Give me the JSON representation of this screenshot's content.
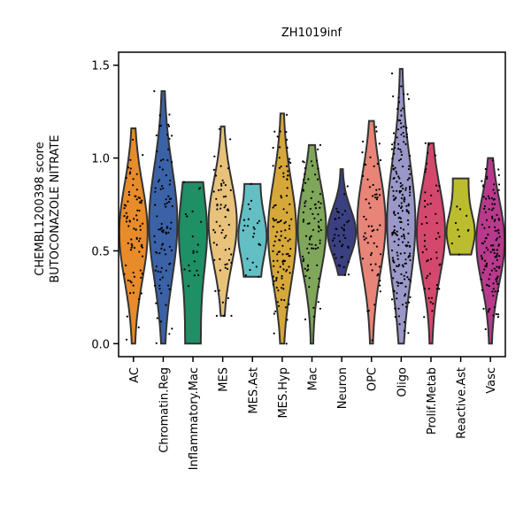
{
  "chart_data": {
    "type": "violin",
    "title": "ZH1019inf",
    "ylabel_line1": "CHEMBL1200398 score",
    "ylabel_line2": "BUTOCONAZOLE NITRATE",
    "ylim": [
      -0.07,
      1.57
    ],
    "yticks": [
      "0.0",
      "0.5",
      "1.0",
      "1.5"
    ],
    "ytick_values": [
      0,
      0.5,
      1.0,
      1.5
    ],
    "grid": false,
    "categories": [
      "AC",
      "Chromatin.Reg",
      "Inflammatory.Mac",
      "MES",
      "MES.Ast",
      "MES.Hyp",
      "Mac",
      "Neuron",
      "OPC",
      "Oligo",
      "Prolif.Metab",
      "Reactive.Ast",
      "Vasc"
    ],
    "colors": [
      "#e88b2a",
      "#3b62a6",
      "#1f8f65",
      "#e8c27a",
      "#63bfc4",
      "#d6a83a",
      "#7fa65a",
      "#3b4080",
      "#e88478",
      "#9a98c8",
      "#d4486e",
      "#bcbd2e",
      "#b83a8c"
    ],
    "series": [
      {
        "min": 0.0,
        "max": 1.16,
        "median": 0.6,
        "n": 80
      },
      {
        "min": 0.0,
        "max": 1.36,
        "median": 0.65,
        "n": 90
      },
      {
        "min": 0.0,
        "max": 0.87,
        "median": 0.6,
        "n": 20
      },
      {
        "min": 0.15,
        "max": 1.17,
        "median": 0.65,
        "n": 60
      },
      {
        "min": 0.36,
        "max": 0.86,
        "median": 0.58,
        "n": 25
      },
      {
        "min": 0.0,
        "max": 1.24,
        "median": 0.6,
        "n": 110
      },
      {
        "min": 0.0,
        "max": 1.07,
        "median": 0.62,
        "n": 80
      },
      {
        "min": 0.37,
        "max": 0.94,
        "median": 0.6,
        "n": 40
      },
      {
        "min": 0.0,
        "max": 1.2,
        "median": 0.65,
        "n": 60
      },
      {
        "min": 0.0,
        "max": 1.48,
        "median": 0.65,
        "n": 200
      },
      {
        "min": 0.0,
        "max": 1.08,
        "median": 0.6,
        "n": 50
      },
      {
        "min": 0.48,
        "max": 0.89,
        "median": 0.6,
        "n": 10
      },
      {
        "min": 0.0,
        "max": 1.0,
        "median": 0.55,
        "n": 120
      }
    ]
  }
}
